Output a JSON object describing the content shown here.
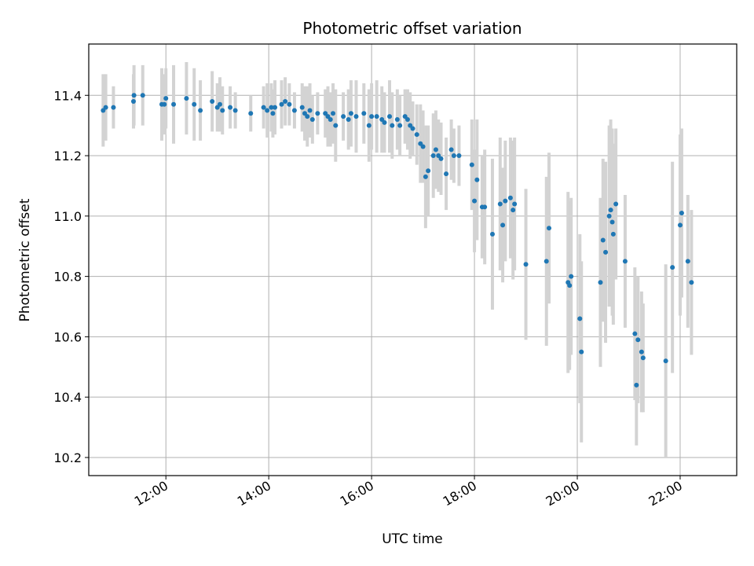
{
  "chart_data": {
    "type": "scatter",
    "title": "Photometric offset variation",
    "xlabel": "UTC time",
    "ylabel": "Photometric offset",
    "x_unit": "hours UTC",
    "xlim": [
      10.5,
      23.1
    ],
    "ylim": [
      10.14,
      11.57
    ],
    "x_ticks": [
      12,
      14,
      16,
      18,
      20,
      22
    ],
    "x_tick_labels": [
      "12:00",
      "14:00",
      "16:00",
      "18:00",
      "20:00",
      "22:00"
    ],
    "y_ticks": [
      10.2,
      10.4,
      10.6,
      10.8,
      11.0,
      11.2,
      11.4
    ],
    "y_tick_labels": [
      "10.2",
      "10.4",
      "10.6",
      "10.8",
      "11.0",
      "11.2",
      "11.4"
    ],
    "grid": true,
    "colors": {
      "point": "#1f77b4",
      "errorbar": "#d3d3d3",
      "grid": "#b0b0b0"
    },
    "points": [
      {
        "x": 10.78,
        "y": 11.35,
        "err": 0.12
      },
      {
        "x": 10.83,
        "y": 11.36,
        "err": 0.11
      },
      {
        "x": 10.98,
        "y": 11.36,
        "err": 0.07
      },
      {
        "x": 11.37,
        "y": 11.38,
        "err": 0.09
      },
      {
        "x": 11.38,
        "y": 11.4,
        "err": 0.1
      },
      {
        "x": 11.55,
        "y": 11.4,
        "err": 0.1
      },
      {
        "x": 11.92,
        "y": 11.37,
        "err": 0.12
      },
      {
        "x": 11.97,
        "y": 11.37,
        "err": 0.1
      },
      {
        "x": 12.0,
        "y": 11.39,
        "err": 0.1
      },
      {
        "x": 12.15,
        "y": 11.37,
        "err": 0.13
      },
      {
        "x": 12.4,
        "y": 11.39,
        "err": 0.12
      },
      {
        "x": 12.55,
        "y": 11.37,
        "err": 0.12
      },
      {
        "x": 12.67,
        "y": 11.35,
        "err": 0.1
      },
      {
        "x": 12.9,
        "y": 11.38,
        "err": 0.1
      },
      {
        "x": 13.0,
        "y": 11.36,
        "err": 0.08
      },
      {
        "x": 13.05,
        "y": 11.37,
        "err": 0.09
      },
      {
        "x": 13.1,
        "y": 11.35,
        "err": 0.08
      },
      {
        "x": 13.25,
        "y": 11.36,
        "err": 0.07
      },
      {
        "x": 13.35,
        "y": 11.35,
        "err": 0.06
      },
      {
        "x": 13.65,
        "y": 11.34,
        "err": 0.06
      },
      {
        "x": 13.9,
        "y": 11.36,
        "err": 0.07
      },
      {
        "x": 13.97,
        "y": 11.35,
        "err": 0.09
      },
      {
        "x": 14.05,
        "y": 11.36,
        "err": 0.08
      },
      {
        "x": 14.08,
        "y": 11.34,
        "err": 0.08
      },
      {
        "x": 14.12,
        "y": 11.36,
        "err": 0.09
      },
      {
        "x": 14.25,
        "y": 11.37,
        "err": 0.08
      },
      {
        "x": 14.32,
        "y": 11.38,
        "err": 0.08
      },
      {
        "x": 14.4,
        "y": 11.37,
        "err": 0.07
      },
      {
        "x": 14.5,
        "y": 11.35,
        "err": 0.06
      },
      {
        "x": 14.65,
        "y": 11.36,
        "err": 0.08
      },
      {
        "x": 14.7,
        "y": 11.34,
        "err": 0.09
      },
      {
        "x": 14.75,
        "y": 11.33,
        "err": 0.1
      },
      {
        "x": 14.8,
        "y": 11.35,
        "err": 0.09
      },
      {
        "x": 14.85,
        "y": 11.32,
        "err": 0.08
      },
      {
        "x": 14.95,
        "y": 11.34,
        "err": 0.07
      },
      {
        "x": 15.1,
        "y": 11.34,
        "err": 0.08
      },
      {
        "x": 15.15,
        "y": 11.33,
        "err": 0.1
      },
      {
        "x": 15.2,
        "y": 11.32,
        "err": 0.09
      },
      {
        "x": 15.25,
        "y": 11.34,
        "err": 0.1
      },
      {
        "x": 15.3,
        "y": 11.3,
        "err": 0.12
      },
      {
        "x": 15.45,
        "y": 11.33,
        "err": 0.08
      },
      {
        "x": 15.55,
        "y": 11.32,
        "err": 0.1
      },
      {
        "x": 15.6,
        "y": 11.34,
        "err": 0.11
      },
      {
        "x": 15.7,
        "y": 11.33,
        "err": 0.12
      },
      {
        "x": 15.85,
        "y": 11.34,
        "err": 0.1
      },
      {
        "x": 15.95,
        "y": 11.3,
        "err": 0.12
      },
      {
        "x": 16.0,
        "y": 11.33,
        "err": 0.11
      },
      {
        "x": 16.1,
        "y": 11.33,
        "err": 0.12
      },
      {
        "x": 16.2,
        "y": 11.32,
        "err": 0.11
      },
      {
        "x": 16.25,
        "y": 11.31,
        "err": 0.1
      },
      {
        "x": 16.35,
        "y": 11.33,
        "err": 0.12
      },
      {
        "x": 16.4,
        "y": 11.3,
        "err": 0.11
      },
      {
        "x": 16.5,
        "y": 11.32,
        "err": 0.1
      },
      {
        "x": 16.55,
        "y": 11.3,
        "err": 0.1
      },
      {
        "x": 16.65,
        "y": 11.33,
        "err": 0.09
      },
      {
        "x": 16.7,
        "y": 11.32,
        "err": 0.1
      },
      {
        "x": 16.75,
        "y": 11.3,
        "err": 0.11
      },
      {
        "x": 16.8,
        "y": 11.29,
        "err": 0.09
      },
      {
        "x": 16.88,
        "y": 11.27,
        "err": 0.1
      },
      {
        "x": 16.95,
        "y": 11.24,
        "err": 0.13
      },
      {
        "x": 17.0,
        "y": 11.23,
        "err": 0.12
      },
      {
        "x": 17.05,
        "y": 11.13,
        "err": 0.17
      },
      {
        "x": 17.1,
        "y": 11.15,
        "err": 0.15
      },
      {
        "x": 17.2,
        "y": 11.2,
        "err": 0.14
      },
      {
        "x": 17.25,
        "y": 11.22,
        "err": 0.13
      },
      {
        "x": 17.3,
        "y": 11.2,
        "err": 0.12
      },
      {
        "x": 17.35,
        "y": 11.19,
        "err": 0.12
      },
      {
        "x": 17.45,
        "y": 11.14,
        "err": 0.12
      },
      {
        "x": 17.55,
        "y": 11.22,
        "err": 0.1
      },
      {
        "x": 17.6,
        "y": 11.2,
        "err": 0.09
      },
      {
        "x": 17.7,
        "y": 11.2,
        "err": 0.1
      },
      {
        "x": 17.95,
        "y": 11.17,
        "err": 0.15
      },
      {
        "x": 18.0,
        "y": 11.05,
        "err": 0.17
      },
      {
        "x": 18.05,
        "y": 11.12,
        "err": 0.2
      },
      {
        "x": 18.15,
        "y": 11.03,
        "err": 0.17
      },
      {
        "x": 18.2,
        "y": 11.03,
        "err": 0.19
      },
      {
        "x": 18.35,
        "y": 10.94,
        "err": 0.25
      },
      {
        "x": 18.5,
        "y": 11.04,
        "err": 0.22
      },
      {
        "x": 18.55,
        "y": 10.97,
        "err": 0.19
      },
      {
        "x": 18.6,
        "y": 11.05,
        "err": 0.2
      },
      {
        "x": 18.7,
        "y": 11.06,
        "err": 0.2
      },
      {
        "x": 18.75,
        "y": 11.02,
        "err": 0.23
      },
      {
        "x": 18.78,
        "y": 11.04,
        "err": 0.22
      },
      {
        "x": 19.0,
        "y": 10.84,
        "err": 0.25
      },
      {
        "x": 19.4,
        "y": 10.85,
        "err": 0.28
      },
      {
        "x": 19.45,
        "y": 10.96,
        "err": 0.25
      },
      {
        "x": 19.82,
        "y": 10.78,
        "err": 0.3
      },
      {
        "x": 19.85,
        "y": 10.77,
        "err": 0.28
      },
      {
        "x": 19.88,
        "y": 10.8,
        "err": 0.26
      },
      {
        "x": 20.05,
        "y": 10.66,
        "err": 0.28
      },
      {
        "x": 20.08,
        "y": 10.55,
        "err": 0.3
      },
      {
        "x": 20.45,
        "y": 10.78,
        "err": 0.28
      },
      {
        "x": 20.5,
        "y": 10.92,
        "err": 0.27
      },
      {
        "x": 20.55,
        "y": 10.88,
        "err": 0.3
      },
      {
        "x": 20.62,
        "y": 11.0,
        "err": 0.3
      },
      {
        "x": 20.65,
        "y": 11.02,
        "err": 0.3
      },
      {
        "x": 20.68,
        "y": 10.98,
        "err": 0.31
      },
      {
        "x": 20.7,
        "y": 10.94,
        "err": 0.3
      },
      {
        "x": 20.75,
        "y": 11.04,
        "err": 0.25
      },
      {
        "x": 20.93,
        "y": 10.85,
        "err": 0.22
      },
      {
        "x": 21.12,
        "y": 10.61,
        "err": 0.22
      },
      {
        "x": 21.15,
        "y": 10.44,
        "err": 0.2
      },
      {
        "x": 21.18,
        "y": 10.59,
        "err": 0.21
      },
      {
        "x": 21.25,
        "y": 10.55,
        "err": 0.2
      },
      {
        "x": 21.28,
        "y": 10.53,
        "err": 0.18
      },
      {
        "x": 21.72,
        "y": 10.52,
        "err": 0.32
      },
      {
        "x": 21.85,
        "y": 10.83,
        "err": 0.35
      },
      {
        "x": 22.0,
        "y": 10.97,
        "err": 0.3
      },
      {
        "x": 22.03,
        "y": 11.01,
        "err": 0.28
      },
      {
        "x": 22.15,
        "y": 10.85,
        "err": 0.22
      },
      {
        "x": 22.22,
        "y": 10.78,
        "err": 0.24
      }
    ]
  }
}
